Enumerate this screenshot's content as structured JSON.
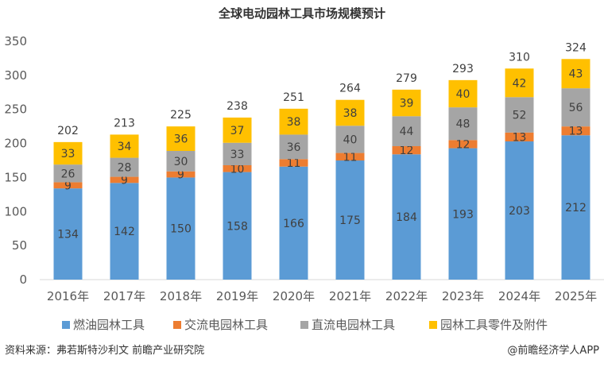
{
  "chart_data": {
    "type": "bar",
    "stacked": true,
    "title": "全球电动园林工具市场规模预计",
    "categories": [
      "2016年",
      "2017年",
      "2018年",
      "2019年",
      "2020年",
      "2021年",
      "2022年",
      "2023年",
      "2024年",
      "2025年"
    ],
    "series": [
      {
        "name": "燃油园林工具",
        "color": "#5B9BD5",
        "values": [
          134,
          142,
          150,
          158,
          166,
          175,
          184,
          193,
          203,
          212
        ]
      },
      {
        "name": "交流电园林工具",
        "color": "#ED7D31",
        "values": [
          9,
          9,
          9,
          10,
          11,
          11,
          12,
          12,
          13,
          13
        ]
      },
      {
        "name": "直流电园林工具",
        "color": "#A5A5A5",
        "values": [
          26,
          28,
          30,
          33,
          36,
          40,
          44,
          48,
          52,
          56
        ]
      },
      {
        "name": "园林工具零件及附件",
        "color": "#FFC000",
        "values": [
          33,
          34,
          36,
          37,
          38,
          38,
          39,
          40,
          42,
          43
        ]
      }
    ],
    "totals": [
      202,
      213,
      225,
      238,
      251,
      264,
      279,
      293,
      310,
      324
    ],
    "ylim": [
      0,
      350
    ],
    "yticks": [
      0,
      50,
      100,
      150,
      200,
      250,
      300,
      350
    ],
    "grid": false,
    "legend": "bottom"
  },
  "footer": {
    "source": "资料来源：弗若斯特沙利文 前瞻产业研究院",
    "brand": "@前瞻经济学人APP"
  }
}
